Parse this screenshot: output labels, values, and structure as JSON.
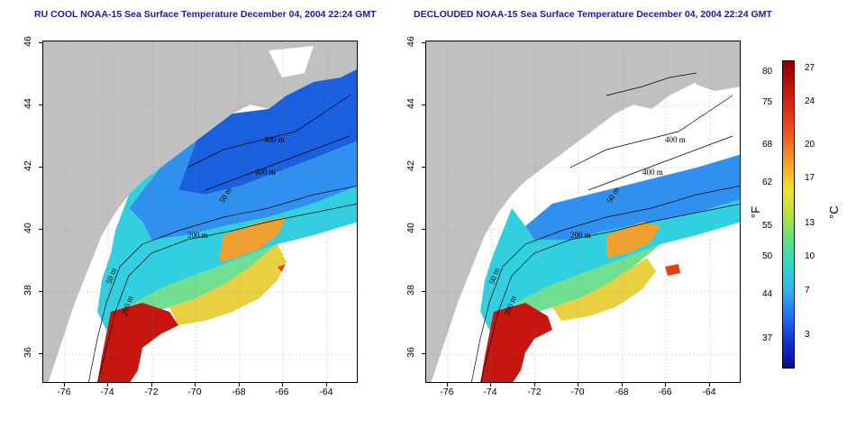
{
  "titles": {
    "left": "RU COOL NOAA-15 Sea Surface Temperature December 04, 2004 22:24 GMT",
    "right": "DECLOUDED NOAA-15 Sea Surface Temperature December 04, 2004 22:24 GMT"
  },
  "axes": {
    "x_ticks": [
      "-76",
      "-74",
      "-72",
      "-70",
      "-68",
      "-66",
      "-64"
    ],
    "y_ticks": [
      "46",
      "44",
      "42",
      "40",
      "38",
      "36"
    ]
  },
  "contours": {
    "labels_left": [
      "400 m",
      "400 m",
      "50 m",
      "200 m",
      "50 m",
      "200 m"
    ],
    "labels_right": [
      "400 m",
      "400 m",
      "50 m",
      "200 m",
      "50 m",
      "200 m"
    ]
  },
  "colorbar": {
    "fahrenheit_ticks": [
      "80",
      "75",
      "68",
      "62",
      "55",
      "50",
      "44",
      "37"
    ],
    "celsius_ticks": [
      "27",
      "24",
      "20",
      "17",
      "13",
      "10",
      "7",
      "3"
    ],
    "unit_f": "°F",
    "unit_c": "°C",
    "colors": [
      "#8b0000",
      "#c41010",
      "#e03018",
      "#f06020",
      "#f8a028",
      "#f0e030",
      "#b8e040",
      "#60e080",
      "#30d8c8",
      "#30b0f0",
      "#2070f0",
      "#1030d0",
      "#0a0a90"
    ]
  },
  "map_colors": {
    "land": "#c0c0c0",
    "no_data": "#ffffff",
    "warm": "#c8140e",
    "hot": "#e83c10",
    "orange": "#f0a030",
    "yellow": "#e8d040",
    "green": "#70e090",
    "cyan": "#30d0e0",
    "blue": "#3090f0",
    "deepblue": "#1860e0"
  }
}
